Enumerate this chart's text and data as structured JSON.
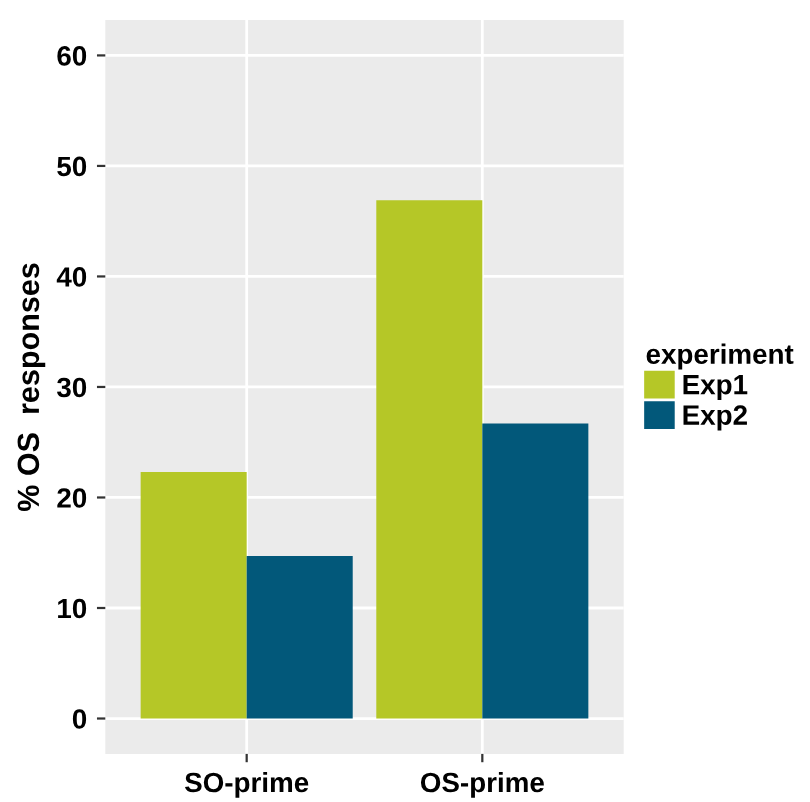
{
  "chart_data": {
    "type": "bar",
    "ylabel": "% OS  responses",
    "categories": [
      "SO-prime",
      "OS-prime"
    ],
    "legend_title": "experiment",
    "series": [
      {
        "name": "Exp1",
        "color": "#b5c727",
        "values": [
          22.3,
          46.9
        ]
      },
      {
        "name": "Exp2",
        "color": "#02587a",
        "values": [
          14.7,
          26.7
        ]
      }
    ],
    "ylim": [
      -3.2,
      63.2
    ],
    "yticks": [
      0,
      10,
      20,
      30,
      40,
      50,
      60
    ],
    "grid": true,
    "legend": "right"
  }
}
